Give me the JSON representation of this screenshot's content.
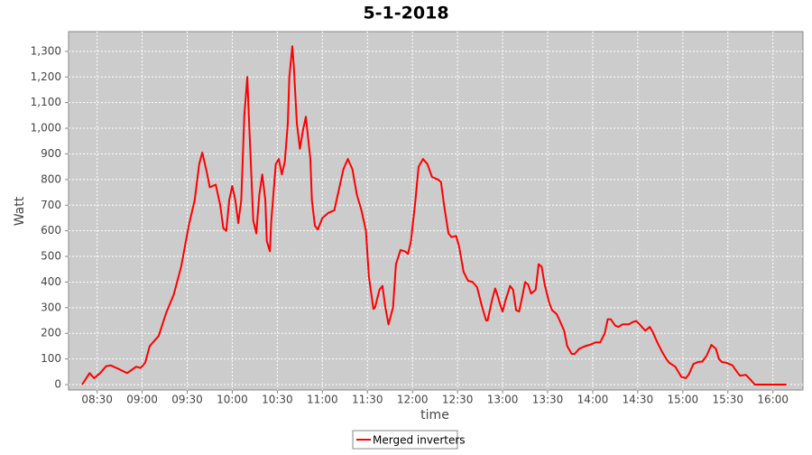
{
  "chart_data": {
    "type": "line",
    "title": "5-1-2018",
    "x_label": "time",
    "y_label": "Watt",
    "x": [
      "08:20",
      "08:25",
      "08:28",
      "08:32",
      "08:36",
      "08:39",
      "08:44",
      "08:50",
      "08:56",
      "08:59",
      "09:02",
      "09:05",
      "09:11",
      "09:16",
      "09:21",
      "09:26",
      "09:31",
      "09:35",
      "09:38",
      "09:40",
      "09:43",
      "09:45",
      "09:49",
      "09:52",
      "09:54",
      "09:56",
      "09:58",
      "10:00",
      "10:02",
      "10:04",
      "10:06",
      "10:08",
      "10:10",
      "10:11",
      "10:14",
      "10:16",
      "10:18",
      "10:20",
      "10:22",
      "10:23",
      "10:25",
      "10:26",
      "10:29",
      "10:31",
      "10:33",
      "10:35",
      "10:37",
      "10:38",
      "10:40",
      "10:41",
      "10:43",
      "10:45",
      "10:47",
      "10:49",
      "10:52",
      "10:53",
      "10:55",
      "10:57",
      "11:00",
      "11:04",
      "11:08",
      "11:11",
      "11:14",
      "11:17",
      "11:20",
      "11:23",
      "11:26",
      "11:29",
      "11:31",
      "11:34",
      "11:35",
      "11:38",
      "11:40",
      "11:42",
      "11:44",
      "11:47",
      "11:49",
      "11:52",
      "11:55",
      "11:57",
      "11:59",
      "12:02",
      "12:04",
      "12:07",
      "12:10",
      "12:13",
      "12:17",
      "12:19",
      "12:21",
      "12:24",
      "12:26",
      "12:29",
      "12:31",
      "12:34",
      "12:37",
      "12:40",
      "12:43",
      "12:46",
      "12:49",
      "12:50",
      "12:53",
      "12:55",
      "12:56",
      "12:59",
      "13:00",
      "13:02",
      "13:05",
      "13:07",
      "13:09",
      "13:11",
      "13:13",
      "13:15",
      "13:17",
      "13:19",
      "13:22",
      "13:24",
      "13:26",
      "13:28",
      "13:31",
      "13:33",
      "13:36",
      "13:38",
      "13:41",
      "13:43",
      "13:46",
      "13:48",
      "13:51",
      "13:55",
      "13:58",
      "14:02",
      "14:05",
      "14:08",
      "14:10",
      "14:12",
      "14:15",
      "14:17",
      "14:20",
      "14:24",
      "14:27",
      "14:29",
      "14:32",
      "14:35",
      "14:38",
      "14:40",
      "14:43",
      "14:46",
      "14:49",
      "14:51",
      "14:55",
      "14:57",
      "14:59",
      "15:02",
      "15:04",
      "15:07",
      "15:10",
      "15:13",
      "15:16",
      "15:19",
      "15:22",
      "15:24",
      "15:26",
      "15:29",
      "15:33",
      "15:36",
      "15:38",
      "15:42",
      "15:45",
      "15:48",
      "15:53",
      "16:09"
    ],
    "series": [
      {
        "name": "Merged inverters",
        "color": "#ff0000",
        "values": [
          0,
          45,
          25,
          45,
          72,
          75,
          62,
          45,
          70,
          65,
          85,
          150,
          190,
          280,
          350,
          460,
          620,
          720,
          860,
          905,
          830,
          770,
          780,
          700,
          610,
          600,
          720,
          775,
          720,
          630,
          720,
          1050,
          1200,
          1050,
          640,
          590,
          740,
          820,
          720,
          560,
          520,
          640,
          860,
          880,
          820,
          870,
          1020,
          1200,
          1320,
          1240,
          1020,
          920,
          990,
          1045,
          880,
          720,
          620,
          605,
          650,
          670,
          680,
          760,
          840,
          880,
          840,
          740,
          680,
          600,
          420,
          295,
          300,
          370,
          385,
          300,
          235,
          300,
          470,
          525,
          520,
          510,
          560,
          720,
          850,
          880,
          860,
          810,
          800,
          790,
          700,
          590,
          575,
          580,
          540,
          440,
          405,
          400,
          380,
          310,
          250,
          250,
          330,
          375,
          360,
          300,
          285,
          330,
          385,
          370,
          290,
          285,
          340,
          400,
          390,
          355,
          370,
          470,
          460,
          390,
          320,
          290,
          275,
          250,
          210,
          150,
          120,
          120,
          140,
          150,
          155,
          165,
          165,
          200,
          255,
          255,
          230,
          225,
          235,
          235,
          245,
          248,
          230,
          210,
          225,
          205,
          165,
          130,
          100,
          85,
          70,
          50,
          30,
          25,
          40,
          80,
          88,
          90,
          115,
          155,
          140,
          100,
          88,
          85,
          75,
          50,
          35,
          38,
          20,
          0,
          0,
          0
        ]
      }
    ],
    "xlim": [
      "08:11",
      "16:20"
    ],
    "xticks": [
      "08:30",
      "09:00",
      "09:30",
      "10:00",
      "10:30",
      "11:00",
      "11:30",
      "12:00",
      "12:30",
      "13:00",
      "13:30",
      "14:00",
      "14:30",
      "15:00",
      "15:30",
      "16:00"
    ],
    "ylim": [
      -21,
      1377
    ],
    "yticks": [
      0,
      100,
      200,
      300,
      400,
      500,
      600,
      700,
      800,
      900,
      {
        "value": 1000,
        "label": "1,000"
      },
      {
        "value": 1100,
        "label": "1,100"
      },
      {
        "value": 1200,
        "label": "1,200"
      },
      {
        "value": 1300,
        "label": "1,300"
      }
    ],
    "grid": true,
    "legend": "bottom"
  }
}
